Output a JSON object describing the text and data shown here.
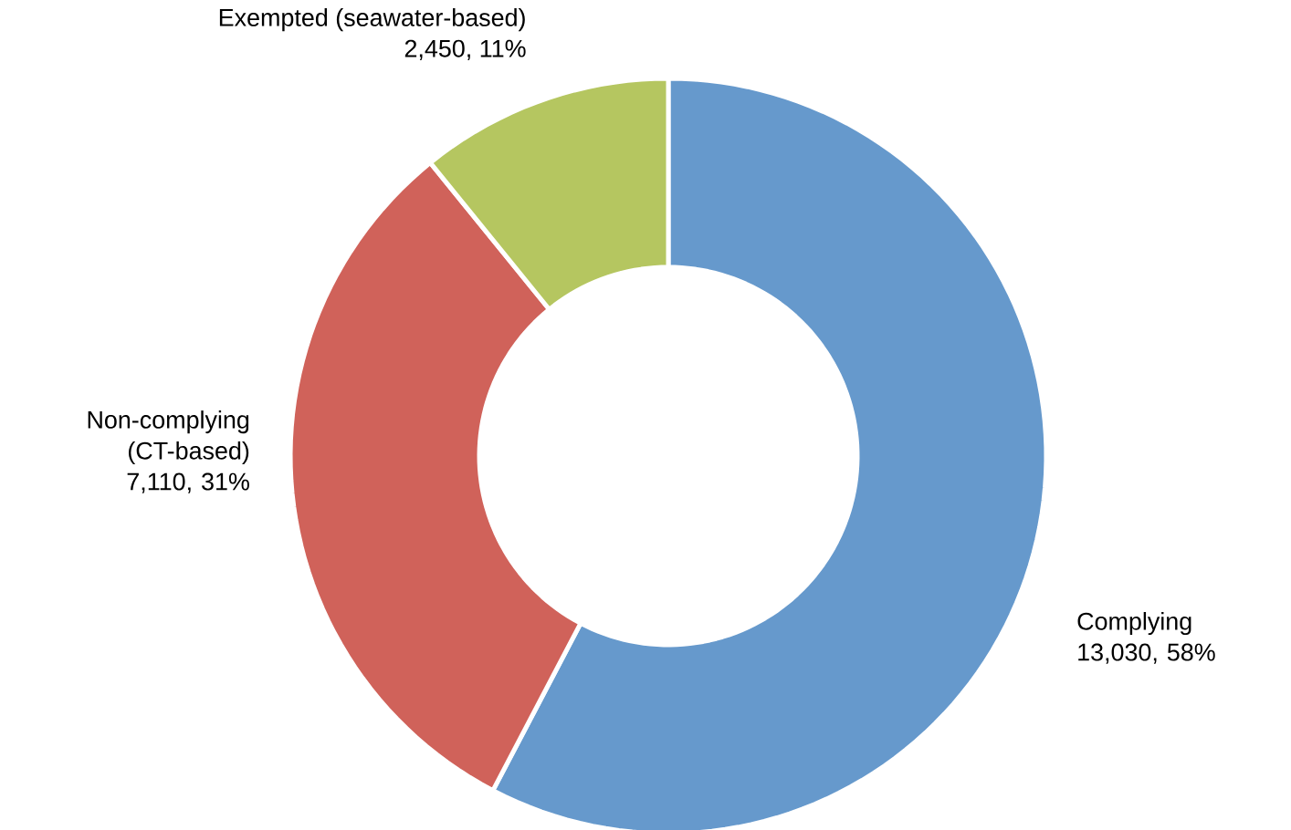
{
  "chart_data": {
    "type": "donut",
    "categories": [
      "Complying",
      "Non-complying (CT-based)",
      "Exempted (seawater-based)"
    ],
    "values": [
      13030,
      7110,
      2450
    ],
    "colors": [
      "#6699cc",
      "#d0625a",
      "#b5c660"
    ],
    "value_labels": [
      "13,030, 58%",
      "7,110, 31%",
      "2,450, 11%"
    ]
  }
}
